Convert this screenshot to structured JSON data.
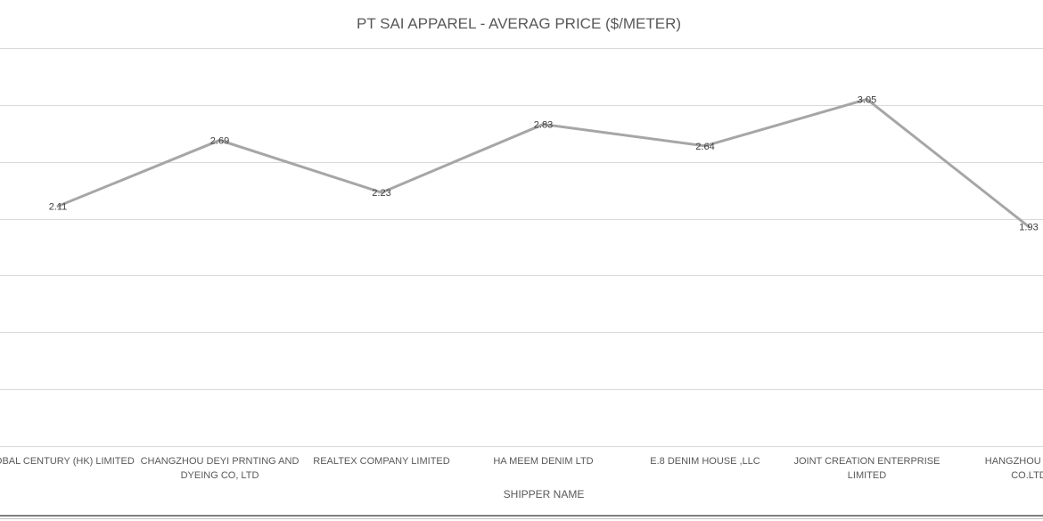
{
  "chart_data": {
    "type": "line",
    "title": "PT SAI APPAREL - AVERAG PRICE ($/METER)",
    "xlabel": "SHIPPER NAME",
    "ylabel": "",
    "ylim": [
      0,
      3.5
    ],
    "grid": true,
    "legend": "none",
    "categories": [
      [
        "GLOBAL CENTURY (HK) LIMITED"
      ],
      [
        "CHANGZHOU DEYI PRNTING AND",
        "DYEING CO, LTD"
      ],
      [
        "REALTEX COMPANY LIMITED"
      ],
      [
        "HA MEEM DENIM LTD"
      ],
      [
        "E.8 DENIM HOUSE ,LLC"
      ],
      [
        "JOINT CREATION ENTERPRISE",
        "LIMITED"
      ],
      [
        "HANGZHOU FEINA",
        "CO.LTD"
      ]
    ],
    "series": [
      {
        "values": [
          2.11,
          2.69,
          2.23,
          2.83,
          2.64,
          3.05,
          1.93
        ],
        "labels": [
          "2.11",
          "2.69",
          "2.23",
          "2.83",
          "2.64",
          "3.05",
          "1.93"
        ],
        "color": "#a6a6a6"
      }
    ],
    "colors": {
      "grid": "#d9d9d9",
      "text": "#595959"
    }
  }
}
